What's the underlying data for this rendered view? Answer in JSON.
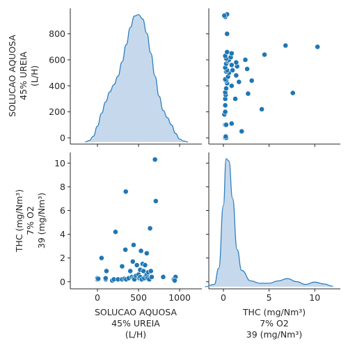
{
  "chart_data": {
    "type": "scatter",
    "subtype": "pairplot",
    "variables": [
      "SOLUCAO AQUOSA 45% UREIA (L/H)",
      "THC (mg/Nm³) 7% O2 39 (mg/Nm³)"
    ],
    "var1": {
      "label_lines": [
        "SOLUCAO AQUOSA",
        "45% UREIA",
        "(L/H)"
      ],
      "range": [
        -330,
        1270
      ],
      "ticks": [
        0,
        500,
        1000
      ],
      "tick_labels": [
        "0",
        "500",
        "1000"
      ]
    },
    "var2": {
      "label_lines": [
        "THC (mg/Nm³)",
        "7% O2",
        "39 (mg/Nm³)"
      ],
      "range": [
        -1.6,
        12.8
      ],
      "ticks": [
        0,
        5,
        10
      ],
      "tick_labels": [
        "0",
        "5",
        "10"
      ],
      "y_ticks": [
        0,
        2,
        4,
        6,
        8,
        10
      ],
      "y_tick_labels": [
        "0",
        "2",
        "4",
        "6",
        "8",
        "10"
      ]
    },
    "var1_y_ticks": [
      0,
      200,
      400,
      600,
      800
    ],
    "var1_y_tick_labels": [
      "0",
      "200",
      "400",
      "600",
      "800"
    ],
    "diag_kde": {
      "var1": {
        "x": [
          -150,
          -100,
          -50,
          0,
          50,
          100,
          150,
          200,
          250,
          300,
          350,
          400,
          450,
          500,
          550,
          600,
          650,
          700,
          750,
          800,
          850,
          900,
          950,
          1000,
          1050,
          1100
        ],
        "density": [
          0.0,
          0.05,
          0.2,
          0.55,
          1.0,
          1.4,
          1.75,
          2.0,
          2.3,
          2.8,
          3.4,
          4.0,
          4.4,
          4.45,
          4.3,
          3.8,
          3.1,
          2.3,
          1.6,
          1.1,
          0.85,
          0.6,
          0.3,
          0.1,
          0.03,
          0.0
        ]
      },
      "var2": {
        "x": [
          -2,
          -1,
          -0.5,
          0,
          0.3,
          0.6,
          1,
          1.5,
          2,
          3,
          4,
          5,
          6,
          7,
          8,
          9,
          10,
          11,
          12
        ],
        "density": [
          0.0,
          0.1,
          0.8,
          3.5,
          5.5,
          5.4,
          3.8,
          1.6,
          0.7,
          0.25,
          0.15,
          0.15,
          0.25,
          0.35,
          0.22,
          0.1,
          0.2,
          0.12,
          0.02
        ]
      }
    },
    "points": [
      {
        "x": 0,
        "y": 0.2
      },
      {
        "x": 0,
        "y": 0.3
      },
      {
        "x": 10,
        "y": 0.25
      },
      {
        "x": 50,
        "y": 2.0
      },
      {
        "x": 100,
        "y": 0.2
      },
      {
        "x": 100,
        "y": 0.3
      },
      {
        "x": 110,
        "y": 0.9
      },
      {
        "x": 180,
        "y": 0.1
      },
      {
        "x": 200,
        "y": 0.2
      },
      {
        "x": 220,
        "y": 4.2
      },
      {
        "x": 250,
        "y": 0.2
      },
      {
        "x": 300,
        "y": 1.3
      },
      {
        "x": 300,
        "y": 0.2
      },
      {
        "x": 330,
        "y": 0.25
      },
      {
        "x": 340,
        "y": 2.7
      },
      {
        "x": 345,
        "y": 7.6
      },
      {
        "x": 350,
        "y": 0.2
      },
      {
        "x": 380,
        "y": 0.3
      },
      {
        "x": 400,
        "y": 0.9
      },
      {
        "x": 420,
        "y": 0.4
      },
      {
        "x": 430,
        "y": 1.7
      },
      {
        "x": 440,
        "y": 3.1
      },
      {
        "x": 440,
        "y": 0.3
      },
      {
        "x": 450,
        "y": 0.2
      },
      {
        "x": 470,
        "y": 0.5
      },
      {
        "x": 480,
        "y": 1.4
      },
      {
        "x": 500,
        "y": 0.6
      },
      {
        "x": 510,
        "y": 0.3
      },
      {
        "x": 520,
        "y": 1.0
      },
      {
        "x": 520,
        "y": 0.4
      },
      {
        "x": 530,
        "y": 2.6
      },
      {
        "x": 540,
        "y": 0.2
      },
      {
        "x": 550,
        "y": 1.5
      },
      {
        "x": 560,
        "y": 0.9
      },
      {
        "x": 570,
        "y": 0.3
      },
      {
        "x": 580,
        "y": 1.4
      },
      {
        "x": 590,
        "y": 0.5
      },
      {
        "x": 600,
        "y": 2.4
      },
      {
        "x": 600,
        "y": 0.6
      },
      {
        "x": 610,
        "y": 0.3
      },
      {
        "x": 620,
        "y": 0.8
      },
      {
        "x": 630,
        "y": 0.2
      },
      {
        "x": 640,
        "y": 4.5
      },
      {
        "x": 650,
        "y": 0.9
      },
      {
        "x": 660,
        "y": 0.4
      },
      {
        "x": 700,
        "y": 10.3
      },
      {
        "x": 710,
        "y": 6.8
      },
      {
        "x": 800,
        "y": 0.4
      },
      {
        "x": 930,
        "y": 0.2
      },
      {
        "x": 950,
        "y": 0.4
      },
      {
        "x": 940,
        "y": 0.1
      }
    ],
    "grid": false,
    "legend": "none"
  },
  "colors": {
    "point": "#1f77b4",
    "kde_line": "#2f7fbf",
    "kde_fill": "#c6d9ec",
    "axis": "#262626"
  }
}
